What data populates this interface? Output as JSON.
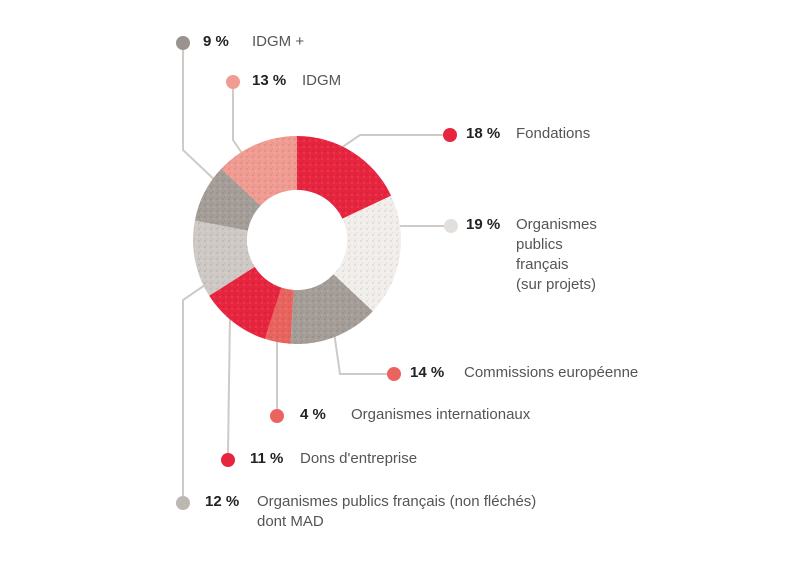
{
  "chart_data": {
    "type": "pie",
    "title": "",
    "series": [
      {
        "label": "Fondations",
        "value": 18,
        "percent_text": "18 %",
        "color": "#e8253f",
        "texture": "#b81a30"
      },
      {
        "label": "Organismes publics français (sur projets)",
        "value": 19,
        "percent_text": "19 %",
        "color": "#f1eeeb",
        "texture": "#d6d0cb"
      },
      {
        "label": "Commissions européenne",
        "value": 14,
        "percent_text": "14 %",
        "color": "#a59d97",
        "texture": "#6f6862"
      },
      {
        "label": "Organismes internationaux",
        "value": 4,
        "percent_text": "4 %",
        "color": "#e9645e",
        "texture": "#b84441"
      },
      {
        "label": "Dons d'entreprise",
        "value": 11,
        "percent_text": "11 %",
        "color": "#e8253f",
        "texture": "#b81a30"
      },
      {
        "label": "Organismes publics français (non fléchés) dont MAD",
        "value": 12,
        "percent_text": "12 %",
        "color": "#cfc9c5",
        "texture": "#a19a95"
      },
      {
        "label": "IDGM +",
        "value": 9,
        "percent_text": "9 %",
        "color": "#a59d97",
        "texture": "#6f6862"
      },
      {
        "label": "IDGM",
        "value": 13,
        "percent_text": "13 %",
        "color": "#f19c92",
        "texture": "#d0746a"
      }
    ],
    "label_lines": {
      "Organismes publics français (sur projets)": [
        "Organismes",
        "publics",
        "français",
        "(sur projets)"
      ],
      "Organismes publics français (non fléchés) dont MAD": [
        "Organismes publics français (non fléchés)",
        "dont MAD"
      ]
    },
    "dot_colors": {
      "Fondations": "#e8253f",
      "Organismes publics français (sur projets)": "#e2dfdc",
      "Commissions européenne": "#e9645e",
      "Organismes internationaux": "#e9645e",
      "Dons d'entreprise": "#e8253f",
      "Organismes publics français (non fléchés) dont MAD": "#bdb7b2",
      "IDGM +": "#9b938d",
      "IDGM": "#f19c92"
    },
    "leader_line_color": "#cfcac6",
    "legend": "callouts"
  }
}
